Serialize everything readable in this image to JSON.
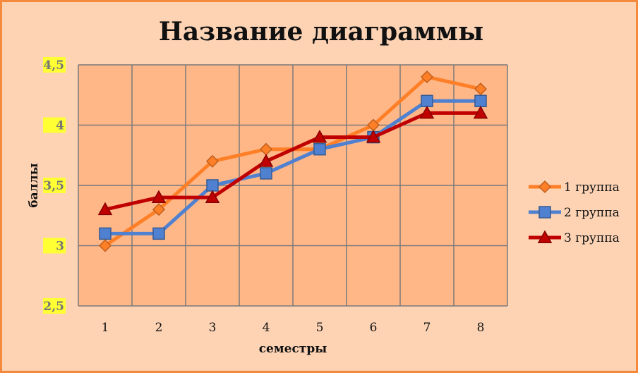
{
  "chart_data": {
    "type": "line",
    "title": "Название диаграммы",
    "xlabel": "семестры",
    "ylabel": "баллы",
    "categories": [
      "1",
      "2",
      "3",
      "4",
      "5",
      "6",
      "7",
      "8"
    ],
    "ylim": [
      2.5,
      4.5
    ],
    "yticks": [
      2.5,
      3,
      3.5,
      4,
      4.5
    ],
    "ytick_labels": [
      "2,5",
      "3",
      "3,5",
      "4",
      "4,5"
    ],
    "ytick_highlight": "#ffff33",
    "grid": true,
    "legend_position": "right",
    "plot_background": "#ffb788",
    "series": [
      {
        "name": "1 группа",
        "marker": "diamond",
        "color": "#ff7f27",
        "values": [
          3.0,
          3.3,
          3.7,
          3.8,
          3.8,
          4.0,
          4.4,
          4.3
        ]
      },
      {
        "name": "2 группа",
        "marker": "square",
        "color": "#4f81d0",
        "values": [
          3.1,
          3.1,
          3.5,
          3.6,
          3.8,
          3.9,
          4.2,
          4.2
        ]
      },
      {
        "name": "3 группа",
        "marker": "triangle",
        "color": "#c00000",
        "values": [
          3.3,
          3.4,
          3.4,
          3.7,
          3.9,
          3.9,
          4.1,
          4.1
        ]
      }
    ]
  }
}
